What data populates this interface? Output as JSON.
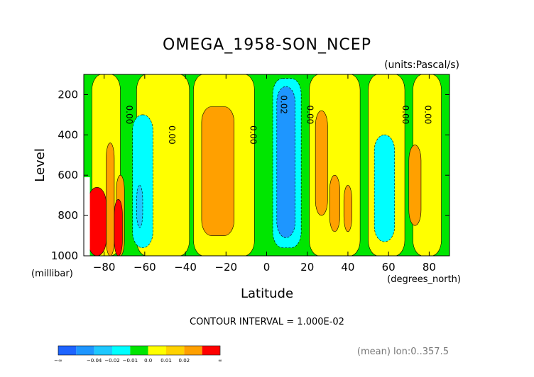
{
  "chart_data": {
    "type": "heatmap",
    "title": "OMEGA_1958-SON_NCEP",
    "units_label": "(units:Pascal/s)",
    "ylabel": "Level",
    "yunit_label": "(millibar)",
    "xlabel": "Latitude",
    "xunit_label": "(degrees_north)",
    "x_range": [
      -90,
      90
    ],
    "y_range": [
      100,
      1000
    ],
    "y_inverted": true,
    "x_ticks": [
      {
        "value": -80,
        "label": "−80"
      },
      {
        "value": -60,
        "label": "−60"
      },
      {
        "value": -40,
        "label": "−40"
      },
      {
        "value": -20,
        "label": "−20"
      },
      {
        "value": 0,
        "label": "0"
      },
      {
        "value": 20,
        "label": "20"
      },
      {
        "value": 40,
        "label": "40"
      },
      {
        "value": 60,
        "label": "60"
      },
      {
        "value": 80,
        "label": "80"
      }
    ],
    "y_ticks": [
      {
        "value": 200,
        "label": "200"
      },
      {
        "value": 400,
        "label": "400"
      },
      {
        "value": 600,
        "label": "600"
      },
      {
        "value": 800,
        "label": "800"
      },
      {
        "value": 1000,
        "label": "1000"
      }
    ],
    "contour_interval_text": "CONTOUR INTERVAL = 1.000E-02",
    "footer_text": "(mean) lon:0..357.5",
    "contour_labels": [
      {
        "text": "0.00",
        "lat": -69,
        "p": 300
      },
      {
        "text": "0.00",
        "lat": -48,
        "p": 400
      },
      {
        "text": "0.00",
        "lat": -8,
        "p": 400
      },
      {
        "text": "0.02",
        "lat": 7,
        "p": 250
      },
      {
        "text": "0.00",
        "lat": 20,
        "p": 300
      },
      {
        "text": "0.00",
        "lat": 67,
        "p": 300
      },
      {
        "text": "0.00",
        "lat": 78,
        "p": 300
      }
    ],
    "colorbar": {
      "colors": [
        "#1e64ff",
        "#1e96ff",
        "#1ec8ff",
        "#00ffff",
        "#00e600",
        "#ffff00",
        "#ffd200",
        "#ffa000",
        "#ff0000"
      ],
      "labels": [
        "−∞",
        "−0.04",
        "−0.02",
        "−0.01",
        "0.0",
        "0.01",
        "0.02",
        "∞"
      ]
    },
    "shaded_regions": [
      {
        "value": 0.0,
        "color": "#00e600",
        "lat": [
          -90,
          90
        ],
        "p": [
          100,
          1000
        ]
      },
      {
        "value": 0.01,
        "color": "#ffff00",
        "lat": [
          -86,
          -72
        ],
        "p": [
          100,
          1000
        ]
      },
      {
        "value": 0.01,
        "color": "#ffff00",
        "lat": [
          -64,
          -38
        ],
        "p": [
          100,
          1000
        ]
      },
      {
        "value": 0.01,
        "color": "#ffff00",
        "lat": [
          -36,
          -6
        ],
        "p": [
          100,
          1000
        ]
      },
      {
        "value": 0.01,
        "color": "#ffff00",
        "lat": [
          21,
          46
        ],
        "p": [
          100,
          1000
        ]
      },
      {
        "value": 0.01,
        "color": "#ffff00",
        "lat": [
          50,
          68
        ],
        "p": [
          100,
          1000
        ]
      },
      {
        "value": 0.01,
        "color": "#ffff00",
        "lat": [
          72,
          86
        ],
        "p": [
          100,
          1000
        ]
      },
      {
        "value": 0.02,
        "color": "#ffa000",
        "lat": [
          -32,
          -16
        ],
        "p": [
          260,
          900
        ]
      },
      {
        "value": 0.02,
        "color": "#ffa000",
        "lat": [
          24,
          30
        ],
        "p": [
          280,
          800
        ]
      },
      {
        "value": 0.02,
        "color": "#ffa000",
        "lat": [
          31,
          36
        ],
        "p": [
          600,
          880
        ]
      },
      {
        "value": 0.02,
        "color": "#ffa000",
        "lat": [
          38,
          42
        ],
        "p": [
          650,
          880
        ]
      },
      {
        "value": 0.02,
        "color": "#ffa000",
        "lat": [
          70,
          76
        ],
        "p": [
          450,
          850
        ]
      },
      {
        "value": 0.02,
        "color": "#ffa000",
        "lat": [
          -79,
          -75
        ],
        "p": [
          440,
          1000
        ]
      },
      {
        "value": 0.02,
        "color": "#ffa000",
        "lat": [
          -74,
          -70
        ],
        "p": [
          600,
          1000
        ]
      },
      {
        "value": 0.03,
        "color": "#ff0000",
        "lat": [
          -88,
          -79
        ],
        "p": [
          660,
          1000
        ]
      },
      {
        "value": 0.03,
        "color": "#ff0000",
        "lat": [
          -75,
          -71
        ],
        "p": [
          720,
          1000
        ]
      },
      {
        "value": -0.01,
        "color": "#00ffff",
        "lat": [
          -66,
          -56
        ],
        "p": [
          300,
          960
        ]
      },
      {
        "value": -0.01,
        "color": "#00ffff",
        "lat": [
          3,
          17
        ],
        "p": [
          120,
          960
        ]
      },
      {
        "value": -0.01,
        "color": "#00ffff",
        "lat": [
          53,
          63
        ],
        "p": [
          400,
          930
        ]
      },
      {
        "value": -0.02,
        "color": "#1ec8ff",
        "lat": [
          -64,
          -61
        ],
        "p": [
          650,
          860
        ]
      },
      {
        "value": -0.02,
        "color": "#1e96ff",
        "lat": [
          5,
          14
        ],
        "p": [
          160,
          910
        ]
      }
    ],
    "missing_region": {
      "lat": [
        -90,
        -87
      ],
      "p": [
        610,
        1000
      ]
    }
  }
}
